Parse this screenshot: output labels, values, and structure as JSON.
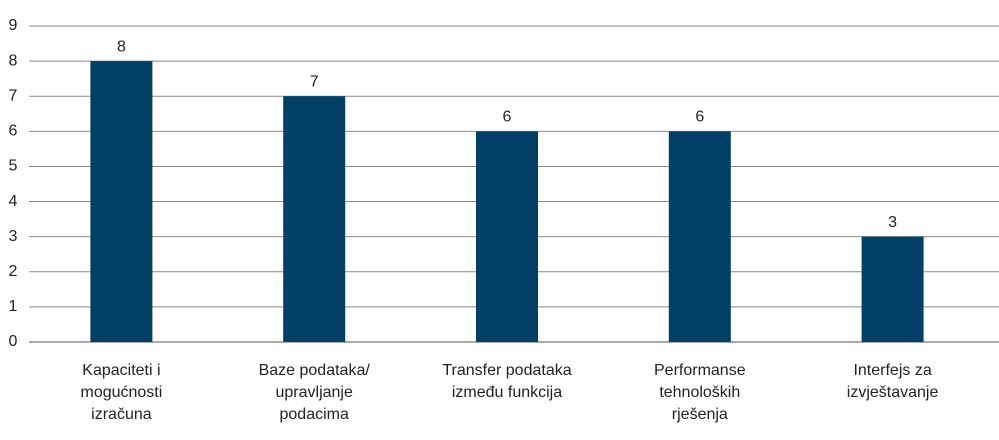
{
  "chart_data": {
    "type": "bar",
    "categories": [
      [
        "Kapaciteti i",
        "mogućnosti",
        "izračuna"
      ],
      [
        "Baze podataka/",
        "upravljanje",
        "podacima"
      ],
      [
        "Transfer podataka",
        "između funkcija"
      ],
      [
        "Performanse",
        "tehnoloških",
        "rješenja"
      ],
      [
        "Interfejs za",
        "izvještavanje"
      ]
    ],
    "values": [
      8,
      7,
      6,
      6,
      3
    ],
    "color": "#003f66",
    "ylim": [
      0,
      9
    ],
    "yticks": [
      0,
      1,
      2,
      3,
      4,
      5,
      6,
      7,
      8,
      9
    ],
    "grid": true
  }
}
